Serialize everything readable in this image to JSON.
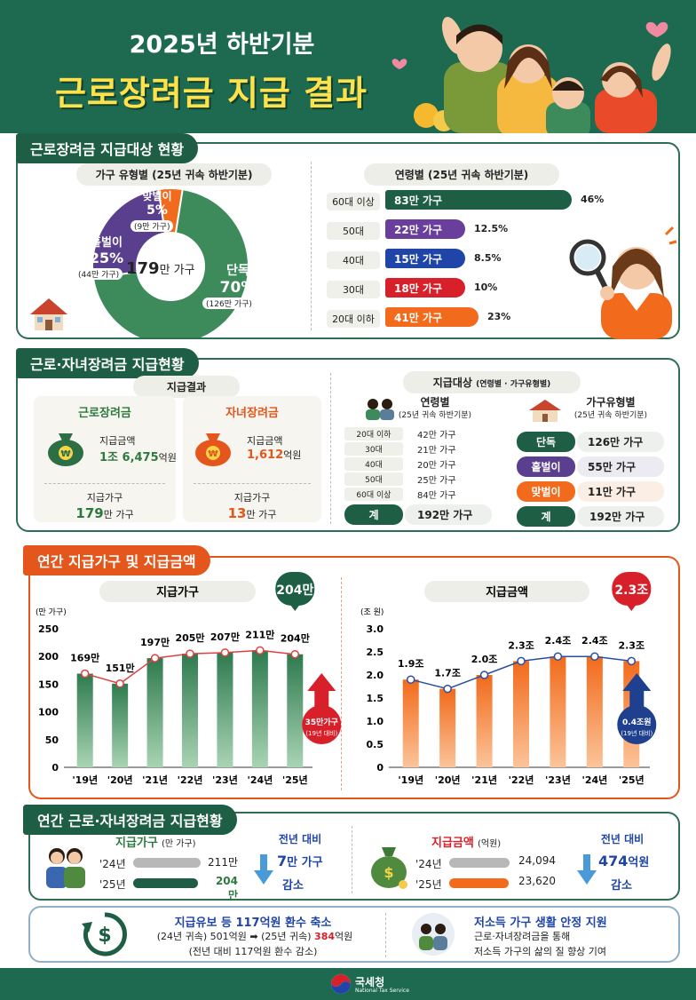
{
  "header": {
    "line1": "2025년 하반기분",
    "line2": "근로장려금 지급 결과"
  },
  "sec1": {
    "title": "근로장려금 지급대상 현황",
    "household_type": {
      "label": "가구 유형별 (25년 귀속 하반기분)",
      "center": "179",
      "center_unit": "만 가구",
      "slices": [
        {
          "name": "단독",
          "pct": "70%",
          "count": "(126만 가구)",
          "value": 70,
          "color": "#3d8a5b"
        },
        {
          "name": "홑벌이",
          "pct": "25%",
          "count": "(44만 가구)",
          "value": 25,
          "color": "#5b3f8f"
        },
        {
          "name": "맞벌이",
          "pct": "5%",
          "count": "(9만 가구)",
          "value": 5,
          "color": "#f26a1b"
        }
      ]
    },
    "age": {
      "label": "연령별 (25년 귀속 하반기분)",
      "rows": [
        {
          "age": "60대 이상",
          "count": "83만 가구",
          "pct": "46%",
          "value": 46,
          "color": "#1e5e45"
        },
        {
          "age": "50대",
          "count": "22만 가구",
          "pct": "12.5%",
          "value": 12.5,
          "color": "#6a3f9c"
        },
        {
          "age": "40대",
          "count": "15만 가구",
          "pct": "8.5%",
          "value": 8.5,
          "color": "#1f45a8"
        },
        {
          "age": "30대",
          "count": "18만 가구",
          "pct": "10%",
          "value": 10,
          "color": "#d8202a"
        },
        {
          "age": "20대 이하",
          "count": "41만 가구",
          "pct": "23%",
          "value": 23,
          "color": "#f26a1b"
        }
      ]
    }
  },
  "sec2": {
    "title": "근로·자녀장려금 지급현황",
    "result_label": "지급결과",
    "work": {
      "name": "근로장려금",
      "amount_label": "지급금액",
      "amount_a": "1조 6,475",
      "amount_unit": "억원",
      "hh_label": "지급가구",
      "hh": "179",
      "hh_unit": "만 가구"
    },
    "child": {
      "name": "자녀장려금",
      "amount_label": "지급금액",
      "amount_a": "1,612",
      "amount_unit": "억원",
      "hh_label": "지급가구",
      "hh": "13",
      "hh_unit": "만 가구"
    },
    "target_label": "지급대상",
    "target_sub": "(연령별 · 가구유형별)",
    "age_head": "연령별",
    "age_sub": "(25년 귀속 하반기분)",
    "age_rows": [
      {
        "age": "20대 이하",
        "v": "42만 가구"
      },
      {
        "age": "30대",
        "v": "21만 가구"
      },
      {
        "age": "40대",
        "v": "20만 가구"
      },
      {
        "age": "50대",
        "v": "25만 가구"
      },
      {
        "age": "60대 이상",
        "v": "84만 가구"
      }
    ],
    "age_total_label": "계",
    "age_total": "192만 가구",
    "type_head": "가구유형별",
    "type_sub": "(25년 귀속 하반기분)",
    "type_rows": [
      {
        "name": "단독",
        "v": "126만 가구",
        "color": "#1e5e45",
        "bg": "#edf0ec"
      },
      {
        "name": "홑벌이",
        "v": "55만 가구",
        "color": "#5b3f8f",
        "bg": "#ecebf2"
      },
      {
        "name": "맞벌이",
        "v": "11만 가구",
        "color": "#f26a1b",
        "bg": "#fbeee4"
      }
    ],
    "type_total_label": "계",
    "type_total": "192만 가구"
  },
  "sec3": {
    "title": "연간 지급가구 및 지급금액",
    "chart_data": [
      {
        "type": "bar",
        "title": "지급가구",
        "ylabel": "(만 가구)",
        "categories": [
          "'19년",
          "'20년",
          "'21년",
          "'22년",
          "'23년",
          "'24년",
          "'25년"
        ],
        "values": [
          169,
          151,
          197,
          205,
          207,
          211,
          204
        ],
        "labels": [
          "169만",
          "151만",
          "197만",
          "205만",
          "207만",
          "211만",
          "204만"
        ],
        "ylim": [
          0,
          250
        ],
        "yticks": [
          0,
          50,
          100,
          150,
          200,
          250
        ],
        "highlight": "204만",
        "annotation": "35만가구",
        "annotation_sub": "(19년 대비)"
      },
      {
        "type": "bar",
        "title": "지급금액",
        "ylabel": "(조 원)",
        "categories": [
          "'19년",
          "'20년",
          "'21년",
          "'22년",
          "'23년",
          "'24년",
          "'25년"
        ],
        "values": [
          1.9,
          1.7,
          2.0,
          2.3,
          2.4,
          2.4,
          2.3
        ],
        "labels": [
          "1.9조",
          "1.7조",
          "2.0조",
          "2.3조",
          "2.4조",
          "2.4조",
          "2.3조"
        ],
        "ylim": [
          0,
          3.0
        ],
        "yticks": [
          "0",
          "0.5",
          "1.0",
          "1.5",
          "2.0",
          "2.5",
          "3.0"
        ],
        "highlight": "2.3조",
        "annotation": "0.4조원",
        "annotation_sub": "(19년 대비)"
      }
    ]
  },
  "sec4": {
    "title": "연간 근로·자녀장려금 지급현황",
    "hh": {
      "label": "지급가구",
      "unit": "(만 가구)",
      "y24": "'24년",
      "v24": "211만",
      "y25": "'25년",
      "v25": "204만",
      "n24": 211,
      "n25": 204
    },
    "hh_cmp": {
      "label": "전년 대비",
      "value": "7",
      "unit": "만 가구",
      "dir": "감소"
    },
    "amt": {
      "label": "지급금액",
      "unit": "(억원)",
      "y24": "'24년",
      "v24": "24,094",
      "y25": "'25년",
      "v25": "23,620",
      "n24": 24094,
      "n25": 23620
    },
    "amt_cmp": {
      "label": "전년 대비",
      "value": "474",
      "unit": "억원",
      "dir": "감소"
    }
  },
  "sec5": {
    "left_title": "지급유보 등 117억원 환수 축소",
    "left_l1a": "(24년 귀속) 501억원",
    "left_l1b": "(25년 귀속)",
    "left_l1c": "384",
    "left_l1d": "억원",
    "left_l2": "(전년 대비 117억원 환수 감소)",
    "right_title": "저소득 가구 생활 안정 지원",
    "right_l1": "근로·자녀장려금을 통해",
    "right_l2": "저소득 가구의 삶의 질 향상 기여"
  },
  "footer": {
    "name": "국세청",
    "sub": "National Tax Service"
  }
}
